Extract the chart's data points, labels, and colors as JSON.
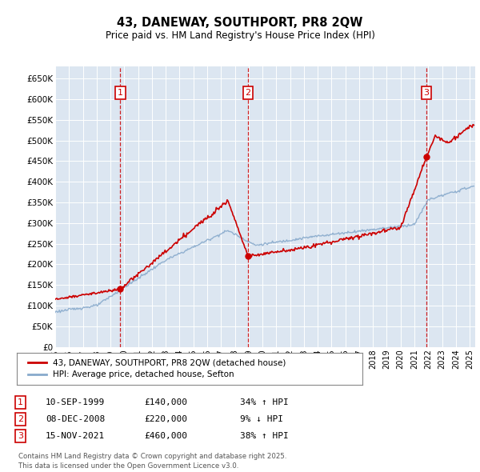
{
  "title": "43, DANEWAY, SOUTHPORT, PR8 2QW",
  "subtitle": "Price paid vs. HM Land Registry's House Price Index (HPI)",
  "sale_prices": [
    140000,
    220000,
    460000
  ],
  "sale_labels": [
    "1",
    "2",
    "3"
  ],
  "sale_hpi_pct": [
    "34% ↑ HPI",
    "9% ↓ HPI",
    "38% ↑ HPI"
  ],
  "sale_dates_display": [
    "10-SEP-1999",
    "08-DEC-2008",
    "15-NOV-2021"
  ],
  "sale_prices_display": [
    "£140,000",
    "£220,000",
    "£460,000"
  ],
  "price_line_color": "#cc0000",
  "hpi_line_color": "#88aacc",
  "vline_color": "#cc0000",
  "plot_bg_color": "#dce6f1",
  "ylim": [
    0,
    680000
  ],
  "yticks": [
    0,
    50000,
    100000,
    150000,
    200000,
    250000,
    300000,
    350000,
    400000,
    450000,
    500000,
    550000,
    600000,
    650000
  ],
  "footer": "Contains HM Land Registry data © Crown copyright and database right 2025.\nThis data is licensed under the Open Government Licence v3.0.",
  "legend_entries": [
    "43, DANEWAY, SOUTHPORT, PR8 2QW (detached house)",
    "HPI: Average price, detached house, Sefton"
  ]
}
